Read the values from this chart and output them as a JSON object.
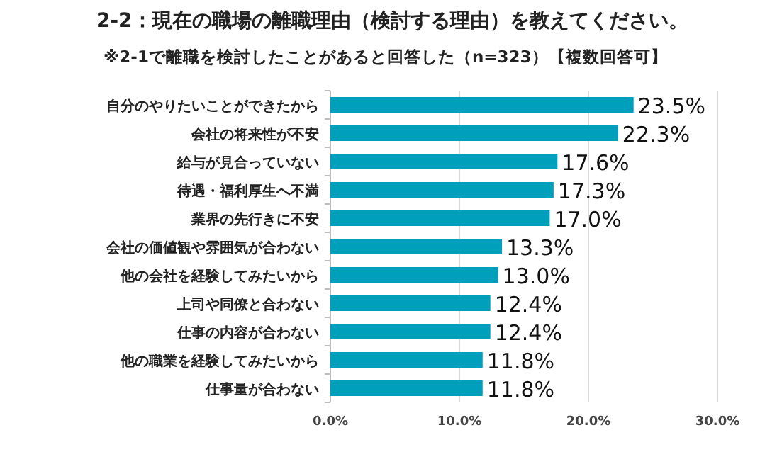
{
  "chart_data": {
    "type": "bar",
    "orientation": "horizontal",
    "title": "2-2：現在の職場の離職理由（検討する理由）を教えてください。",
    "subtitle": "※2-1で離職を検討したことがあると回答した（n=323）【複数回答可】",
    "categories": [
      "自分のやりたいことができたから",
      "会社の将来性が不安",
      "給与が見合っていない",
      "待遇・福利厚生へ不満",
      "業界の先行きに不安",
      "会社の価値観や雰囲気が合わない",
      "他の会社を経験してみたいから",
      "上司や同僚と合わない",
      "仕事の内容が合わない",
      "他の職業を経験してみたいから",
      "仕事量が合わない"
    ],
    "values": [
      23.5,
      22.3,
      17.6,
      17.3,
      17.0,
      13.3,
      13.0,
      12.4,
      12.4,
      11.8,
      11.8
    ],
    "value_labels": [
      "23.5%",
      "22.3%",
      "17.6%",
      "17.3%",
      "17.0%",
      "13.3%",
      "13.0%",
      "12.4%",
      "12.4%",
      "11.8%",
      "11.8%"
    ],
    "color": "#00a0bd",
    "xlim": [
      0,
      30
    ],
    "xticks": [
      {
        "value": 0,
        "label": "0.0%"
      },
      {
        "value": 10,
        "label": "10.0%"
      },
      {
        "value": 20,
        "label": "20.0%"
      },
      {
        "value": 30,
        "label": "30.0%"
      }
    ],
    "grid": "x"
  }
}
